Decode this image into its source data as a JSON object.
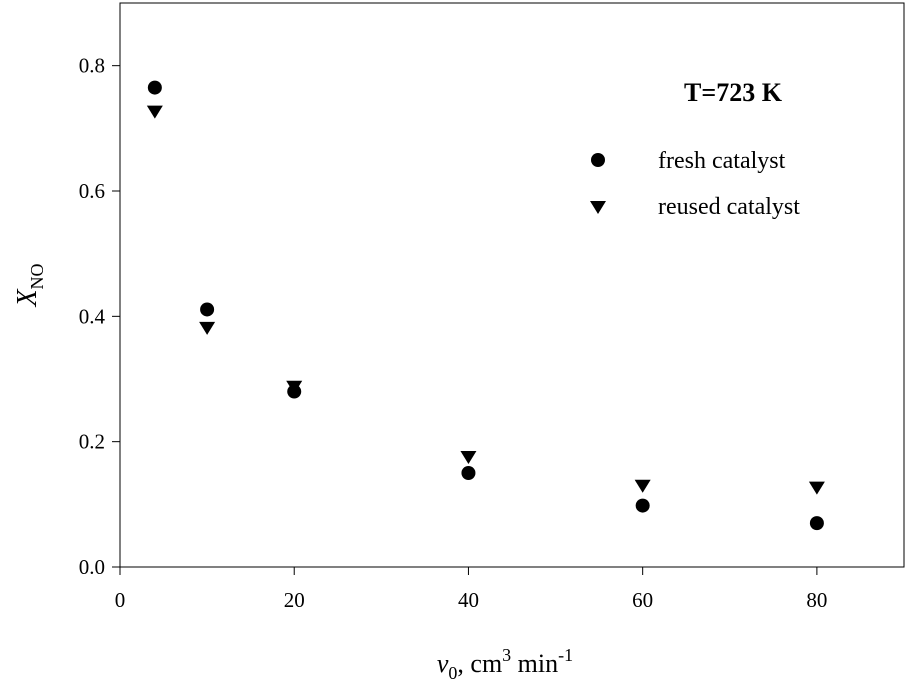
{
  "chart_data": {
    "type": "scatter",
    "title": "",
    "annotation": "T=723 K",
    "xlabel": {
      "main": "v",
      "sub": "0",
      "rest": ", cm",
      "sup": "3",
      "rest2": " min",
      "sup2": "-1"
    },
    "ylabel": {
      "main": "X",
      "sub": "NO"
    },
    "xlim": [
      0,
      90
    ],
    "ylim": [
      0,
      0.9
    ],
    "xticks": [
      0,
      20,
      40,
      60,
      80
    ],
    "xtick_labels": [
      "0",
      "20",
      "40",
      "60",
      "80"
    ],
    "yticks": [
      0.0,
      0.2,
      0.4,
      0.6,
      0.8
    ],
    "ytick_labels": [
      "0.0",
      "0.2",
      "0.4",
      "0.6",
      "0.8"
    ],
    "grid": false,
    "legend_position": "top-right",
    "series": [
      {
        "name": "fresh catalyst",
        "marker": "circle",
        "color": "#000000",
        "x": [
          4,
          10,
          20,
          40,
          60,
          80
        ],
        "y": [
          0.765,
          0.411,
          0.28,
          0.15,
          0.098,
          0.07
        ]
      },
      {
        "name": "reused catalyst",
        "marker": "triangle-down",
        "color": "#000000",
        "x": [
          4,
          10,
          20,
          40,
          60,
          80
        ],
        "y": [
          0.725,
          0.38,
          0.286,
          0.174,
          0.128,
          0.125
        ]
      }
    ]
  }
}
